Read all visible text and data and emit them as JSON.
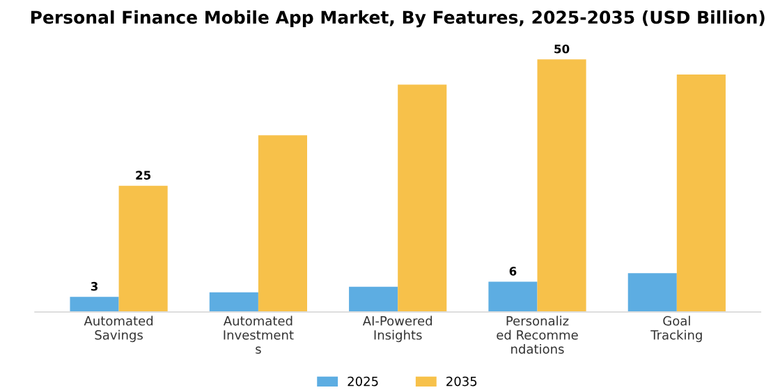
{
  "chart_data": {
    "type": "bar",
    "title": "Personal Finance Mobile App Market, By Features, 2025-2035 (USD Billion)",
    "categories": [
      "Automated\nSavings",
      "Automated\nInvestment\ns",
      "AI-Powered\nInsights",
      "Personaliz\ned Recomme\nndations",
      "Goal\nTracking"
    ],
    "series": [
      {
        "name": "2025",
        "color": "#5dade2",
        "values": [
          3,
          3.9,
          5,
          6,
          7.7
        ],
        "value_labels": [
          "3",
          null,
          null,
          "6",
          null
        ]
      },
      {
        "name": "2035",
        "color": "#f7c14a",
        "values": [
          25,
          35,
          45,
          50,
          47
        ],
        "value_labels": [
          "25",
          null,
          null,
          "50",
          null
        ]
      }
    ],
    "tick_labels": "x",
    "grid": false,
    "legend": "bottom"
  }
}
